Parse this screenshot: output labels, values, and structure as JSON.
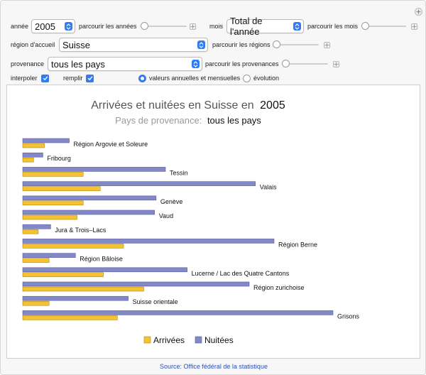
{
  "controls": {
    "annee": {
      "label": "année",
      "value": "2005",
      "slider_label": "parcourir les années",
      "slider_value": 0
    },
    "mois": {
      "label": "mois",
      "value": "Total de l'année",
      "slider_label": "parcourir les mois",
      "slider_value": 0
    },
    "region": {
      "label": "région d'accueil",
      "value": "Suisse",
      "slider_label": "parcourir les régions",
      "slider_value": 0
    },
    "provenance": {
      "label": "provenance",
      "value": "tous les pays",
      "slider_label": "parcourir les provenances",
      "slider_value": 0
    },
    "interpoler": {
      "label": "interpoler",
      "checked": true
    },
    "remplir": {
      "label": "remplir",
      "checked": true
    },
    "radio_annuelles": {
      "label": "valeurs annuelles et mensuelles",
      "selected": true
    },
    "radio_evolution": {
      "label": "évolution",
      "selected": false
    }
  },
  "chart_data": {
    "type": "bar",
    "title_prefix": "Arrivées et nuitées en Suisse en",
    "title_year": "2005",
    "subtitle_prefix": "Pays de provenance:",
    "subtitle_value": "tous les pays",
    "categories": [
      "Région Argovie et Soleure",
      "Fribourg",
      "Tessin",
      "Valais",
      "Genève",
      "Vaud",
      "Jura & Trois–Lacs",
      "Région Berne",
      "Région Bâloise",
      "Lucerne / Lac des Quatre Cantons",
      "Région zurichoise",
      "Suisse orientale",
      "Grisons"
    ],
    "series": [
      {
        "name": "Nuitées",
        "color": "#8288c8",
        "values": [
          0.15,
          0.065,
          0.46,
          0.75,
          0.43,
          0.425,
          0.09,
          0.81,
          0.17,
          0.53,
          0.73,
          0.34,
          1.0
        ]
      },
      {
        "name": "Arrivées",
        "color": "#f5c232",
        "values": [
          0.07,
          0.035,
          0.195,
          0.25,
          0.195,
          0.175,
          0.05,
          0.325,
          0.085,
          0.26,
          0.39,
          0.085,
          0.305
        ]
      }
    ],
    "legend": [
      "Arrivées",
      "Nuitées"
    ],
    "legend_position": "bottom",
    "orientation": "horizontal",
    "value_unit": "relative (fraction of largest Nuitées bar, no axis shown)"
  },
  "source": "Source: Office fédéral de la statistique",
  "colors": {
    "accent": "#2f7cf6",
    "nuitees": "#8288c8",
    "arrivees": "#f5c232",
    "source_link": "#2c4fb4"
  }
}
